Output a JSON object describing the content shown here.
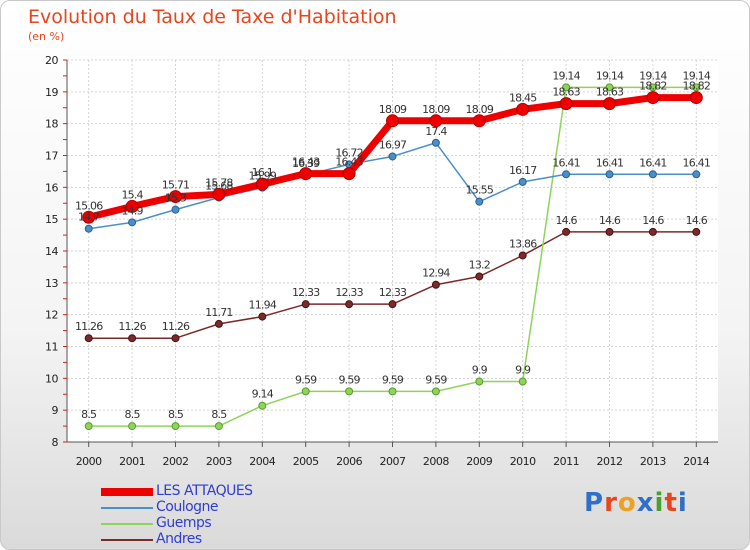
{
  "title": "Evolution du Taux de Taxe d'Habitation",
  "subtitle": "(en %)",
  "logo_text": "Proxiti",
  "chart_data": {
    "type": "line",
    "x": [
      "2000",
      "2001",
      "2002",
      "2003",
      "2004",
      "2005",
      "2006",
      "2007",
      "2008",
      "2009",
      "2010",
      "2011",
      "2012",
      "2013",
      "2014"
    ],
    "ylim": [
      8,
      20
    ],
    "yticks": [
      8,
      9,
      10,
      11,
      12,
      13,
      14,
      15,
      16,
      17,
      18,
      19,
      20
    ],
    "grid": true,
    "legend_position": "bottom-left",
    "series": [
      {
        "name": "LES ATTAQUES",
        "color": "#ee0000",
        "values": [
          15.06,
          15.4,
          15.71,
          15.78,
          16.1,
          16.43,
          16.43,
          18.09,
          18.09,
          18.09,
          18.45,
          18.63,
          18.63,
          18.82,
          18.82
        ],
        "labels": [
          "15.06",
          "15.4",
          "15.71",
          "15.78",
          "16.1",
          "16.43",
          "16.43",
          "18.09",
          "18.09",
          "18.09",
          "18.45",
          "18.63",
          "18.63",
          "18.82",
          "18.82"
        ]
      },
      {
        "name": "Coulogne",
        "color": "#4a90c8",
        "values": [
          14.7,
          14.9,
          15.3,
          15.68,
          15.99,
          16.39,
          16.72,
          16.97,
          17.4,
          15.55,
          16.17,
          16.41,
          16.41,
          16.41,
          16.41
        ],
        "labels": [
          "14.7",
          "14.9",
          "15.3",
          "15.68",
          "15.99",
          "16.39",
          "16.72",
          "16.97",
          "17.4",
          "15.55",
          "16.17",
          "16.41",
          "16.41",
          "16.41",
          "16.41"
        ]
      },
      {
        "name": "Guemps",
        "color": "#8fd45a",
        "values": [
          8.5,
          8.5,
          8.5,
          8.5,
          9.14,
          9.59,
          9.59,
          9.59,
          9.59,
          9.9,
          9.9,
          19.14,
          19.14,
          19.14,
          19.14
        ],
        "labels": [
          "8.5",
          "8.5",
          "8.5",
          "8.5",
          "9.14",
          "9.59",
          "9.59",
          "9.59",
          "9.59",
          "9.9",
          "9.9",
          "19.14",
          "19.14",
          "19.14",
          "19.14"
        ]
      },
      {
        "name": "Andres",
        "color": "#7b2a2a",
        "values": [
          11.26,
          11.26,
          11.26,
          11.71,
          11.94,
          12.33,
          12.33,
          12.33,
          12.94,
          13.2,
          13.86,
          14.6,
          14.6,
          14.6,
          14.6
        ],
        "labels": [
          "11.26",
          "11.26",
          "11.26",
          "11.71",
          "11.94",
          "12.33",
          "12.33",
          "12.33",
          "12.94",
          "13.2",
          "13.86",
          "14.6",
          "14.6",
          "14.6",
          "14.6"
        ]
      }
    ]
  }
}
